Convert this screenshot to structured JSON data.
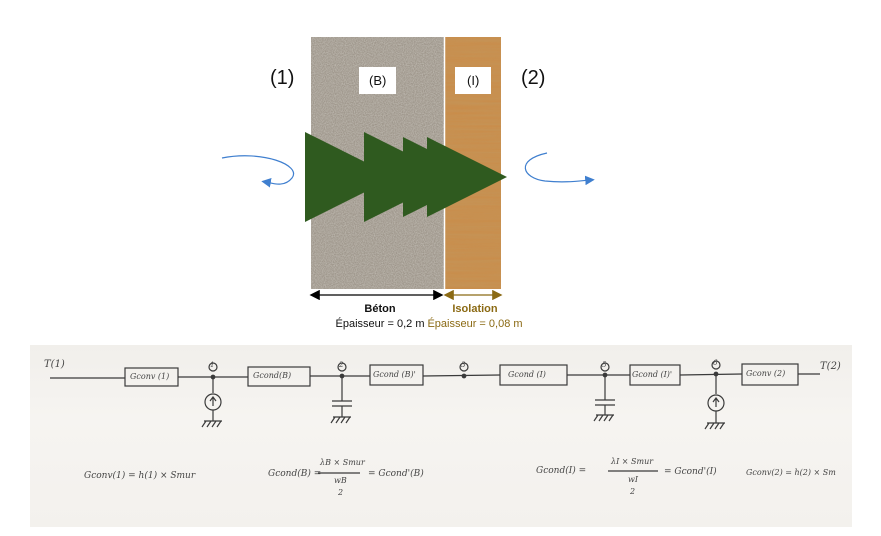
{
  "wall": {
    "side_left": "(1)",
    "side_right": "(2)",
    "beton_box": "(B)",
    "isolation_box": "(I)",
    "beton_name": "Béton",
    "beton_thickness": "Épaisseur = 0,2 m",
    "isolation_name": "Isolation",
    "isolation_thickness": "Épaisseur = 0,08 m"
  },
  "circuit": {
    "t_left": "T(1)",
    "t_right": "T(2)",
    "nodes": [
      "1",
      "2",
      "3",
      "5",
      "6"
    ],
    "conductances": [
      "Gconv (1)",
      "Gcond(B)",
      "Gcond (B)'",
      "Gcond (I)",
      "Gcond (I)'",
      "Gconv (2)"
    ]
  },
  "formulas": {
    "f1": "Gconv(1) = h(1) × Smur",
    "f2_lhs": "Gcond(B) =",
    "f2_num": "λB × Smur",
    "f2_den": "wB",
    "f2_den2": "2",
    "f2_rhs": "= Gcond'(B)",
    "f3_lhs": "Gcond(I) =",
    "f3_num": "λI × Smur",
    "f3_den": "wI",
    "f3_den2": "2",
    "f3_rhs": "= Gcond'(I)",
    "f4": "Gconv(2) = h(2) × Sm"
  },
  "colors": {
    "flow_arrow": "#2f5a1f",
    "isolation_text": "#8b6a14",
    "curl_arrow": "#3f7fcf"
  }
}
